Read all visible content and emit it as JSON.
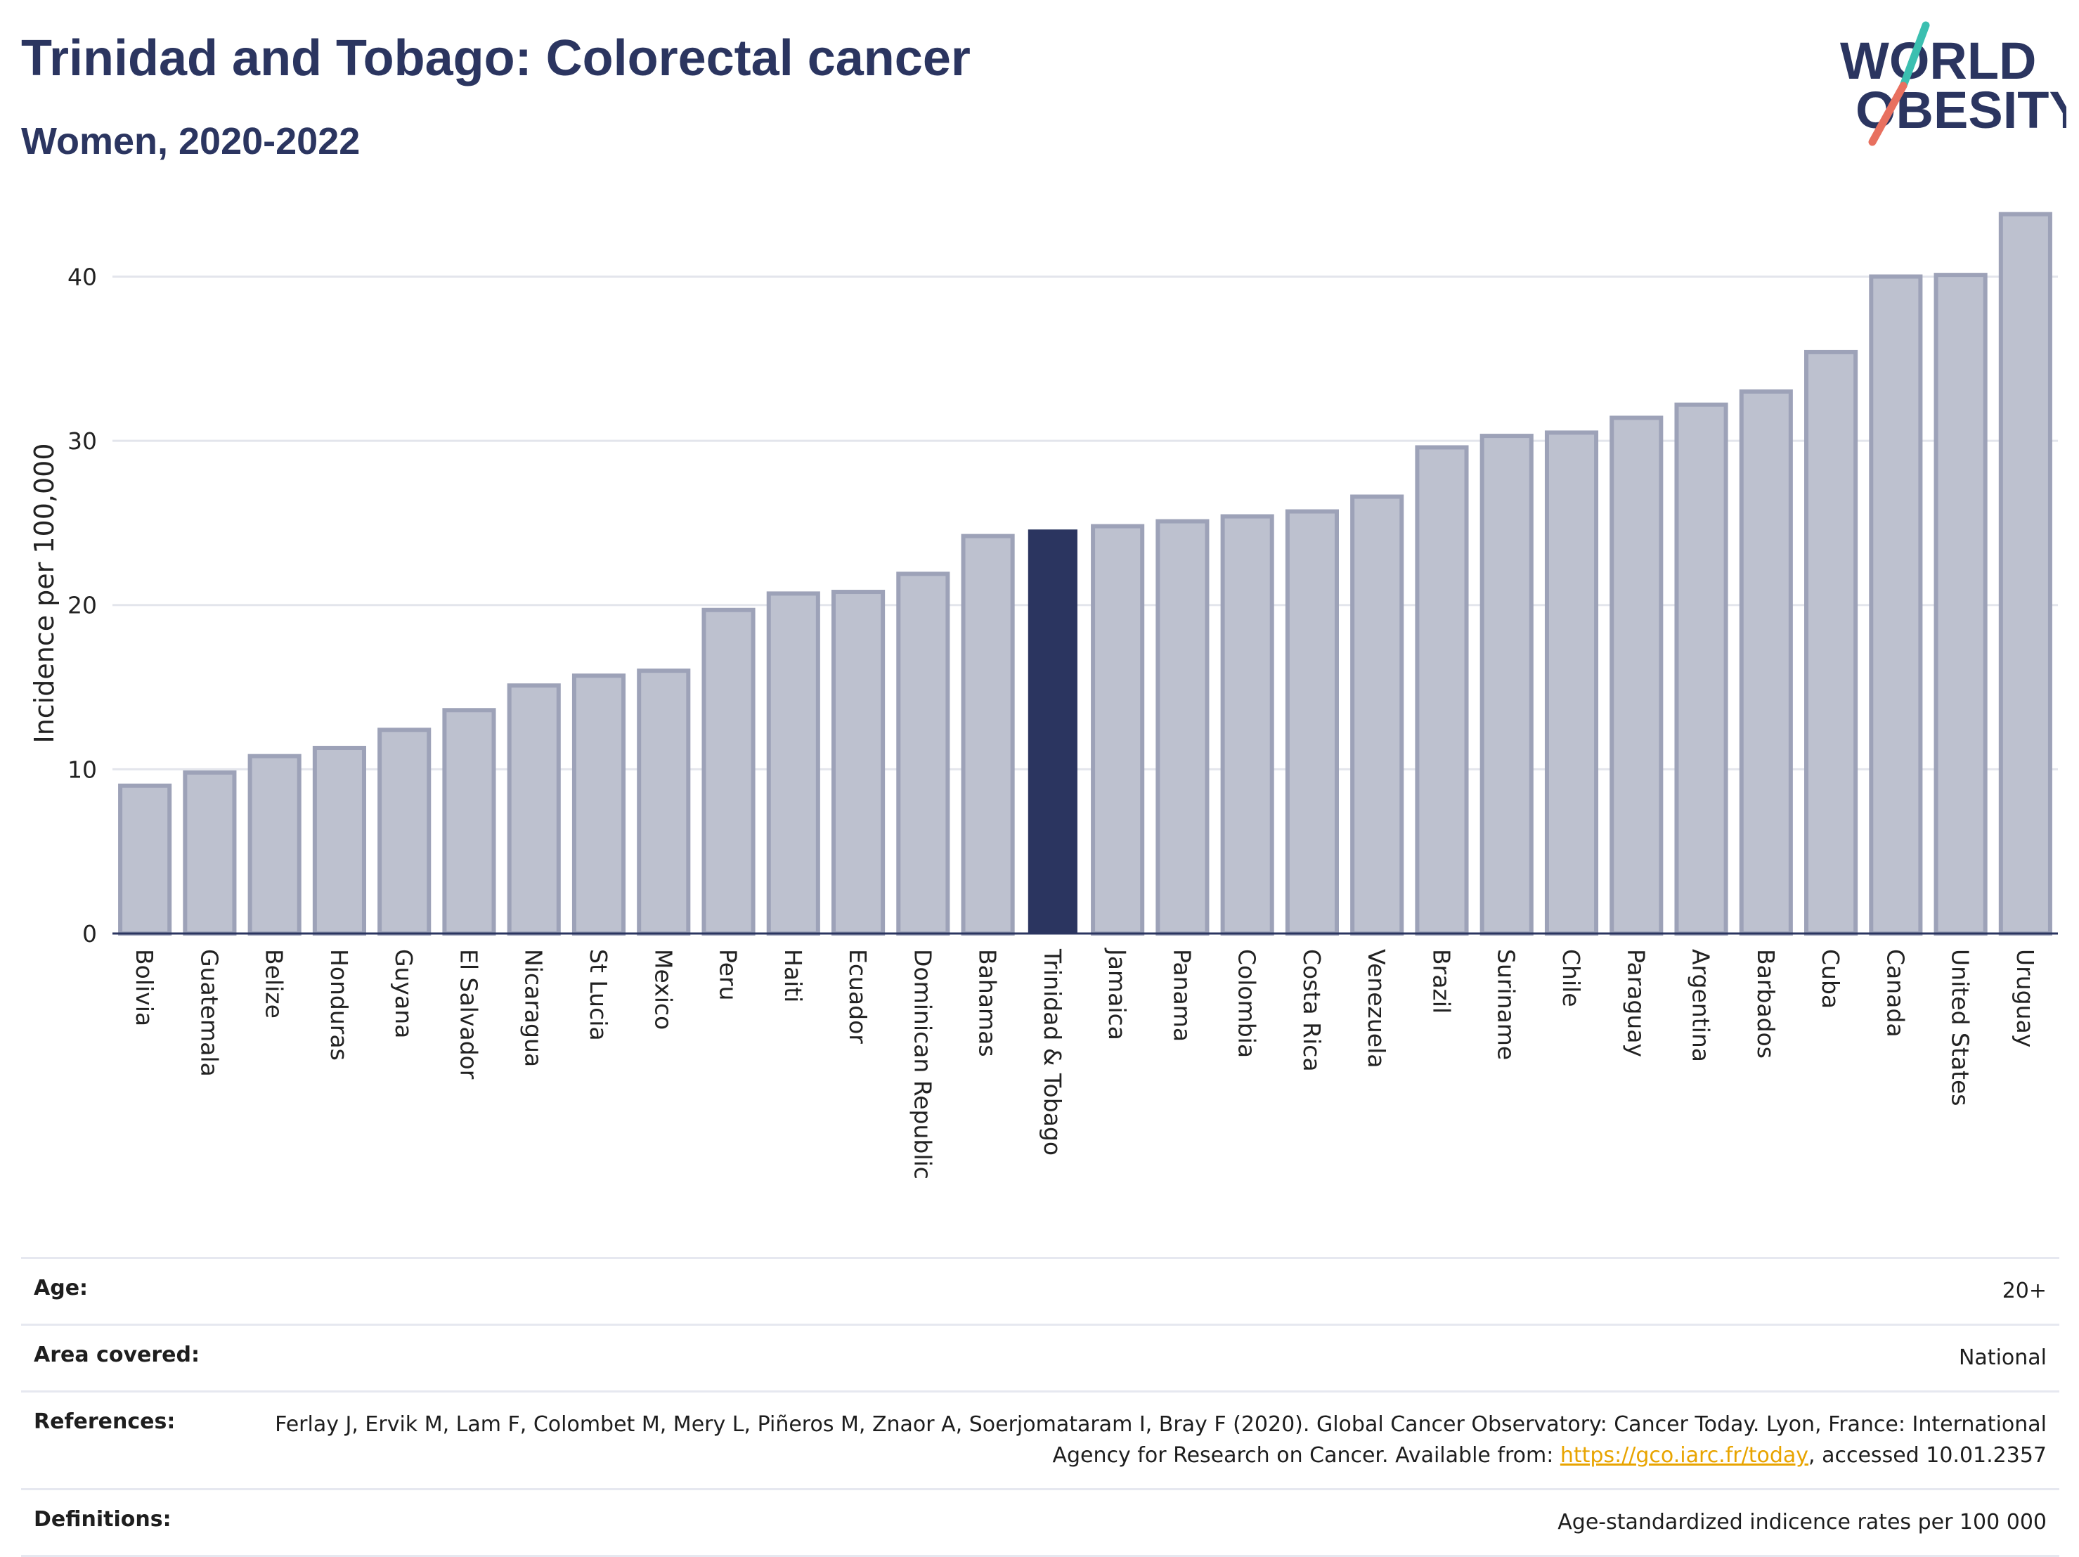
{
  "header": {
    "title": "Trinidad and Tobago: Colorectal cancer",
    "subtitle": "Women, 2020-2022"
  },
  "logo": {
    "line1": "WORLD",
    "line2": "OBESITY",
    "colors": {
      "text": "#2b3560",
      "slash_teal": "#3bbfb0",
      "slash_coral": "#e8705f"
    }
  },
  "chart_data": {
    "type": "bar",
    "title": "",
    "xlabel": "",
    "ylabel": "Incidence per 100,000",
    "ylim": [
      0,
      44
    ],
    "yticks": [
      0,
      10,
      20,
      30,
      40
    ],
    "grid": true,
    "highlight": "Trinidad & Tobago",
    "colors": {
      "bar": "#bdc1cf",
      "bar_edge": "#9da2b8",
      "highlight": "#2b3560"
    },
    "categories": [
      "Bolivia",
      "Guatemala",
      "Belize",
      "Honduras",
      "Guyana",
      "El Salvador",
      "Nicaragua",
      "St Lucia",
      "Mexico",
      "Peru",
      "Haiti",
      "Ecuador",
      "Dominican Republic",
      "Bahamas",
      "Trinidad & Tobago",
      "Jamaica",
      "Panama",
      "Colombia",
      "Costa Rica",
      "Venezuela",
      "Brazil",
      "Suriname",
      "Chile",
      "Paraguay",
      "Argentina",
      "Barbados",
      "Cuba",
      "Canada",
      "United States",
      "Uruguay"
    ],
    "values": [
      9.0,
      9.8,
      10.8,
      11.3,
      12.4,
      13.6,
      15.1,
      15.7,
      16.0,
      19.7,
      20.7,
      20.8,
      21.9,
      24.2,
      24.6,
      24.8,
      25.1,
      25.4,
      25.7,
      26.6,
      29.6,
      30.3,
      30.5,
      31.4,
      32.2,
      33.0,
      35.4,
      40.0,
      40.1,
      43.8
    ]
  },
  "info": {
    "age_label": "Age:",
    "age_value": "20+",
    "area_label": "Area covered:",
    "area_value": "National",
    "references_label": "References:",
    "references_text_1": "Ferlay J, Ervik M, Lam F, Colombet M, Mery L, Piñeros M, Znaor A, Soerjomataram I, Bray F (2020). Global Cancer Observatory: Cancer Today. Lyon, France: International Agency for Research on Cancer. Available from: ",
    "references_link": "https://gco.iarc.fr/today",
    "references_text_2": ", accessed 10.01.2357",
    "definitions_label": "Definitions:",
    "definitions_value": "Age-standardized indicence rates per 100 000"
  }
}
